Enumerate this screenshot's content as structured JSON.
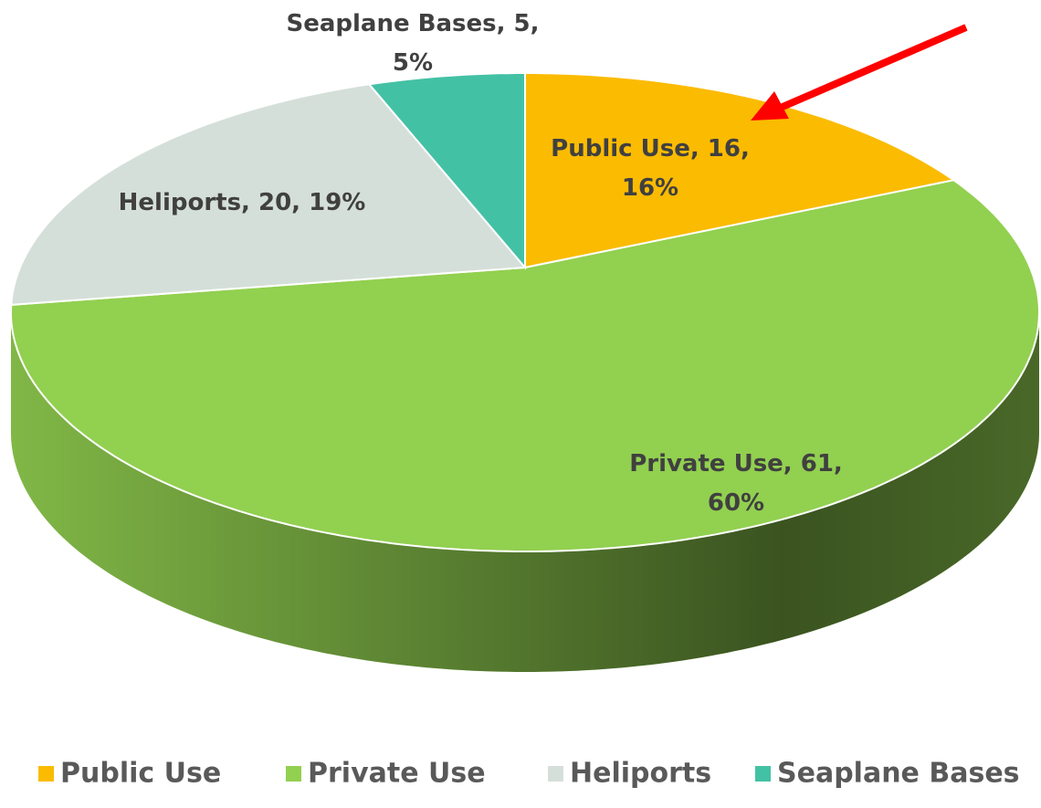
{
  "chart_data": {
    "type": "pie3d",
    "categories": [
      "Public Use",
      "Private Use",
      "Heliports",
      "Seaplane Bases"
    ],
    "values": [
      16,
      61,
      20,
      5
    ],
    "value_labels": [
      "Public Use, 16, 16%",
      "Private Use, 61, 60%",
      "Heliports, 20, 19%",
      "Seaplane Bases, 5, 5%"
    ],
    "colors": [
      "#FBBB00",
      "#92D050",
      "#D5DFD9",
      "#43C1A5"
    ],
    "legend": "bottom"
  }
}
